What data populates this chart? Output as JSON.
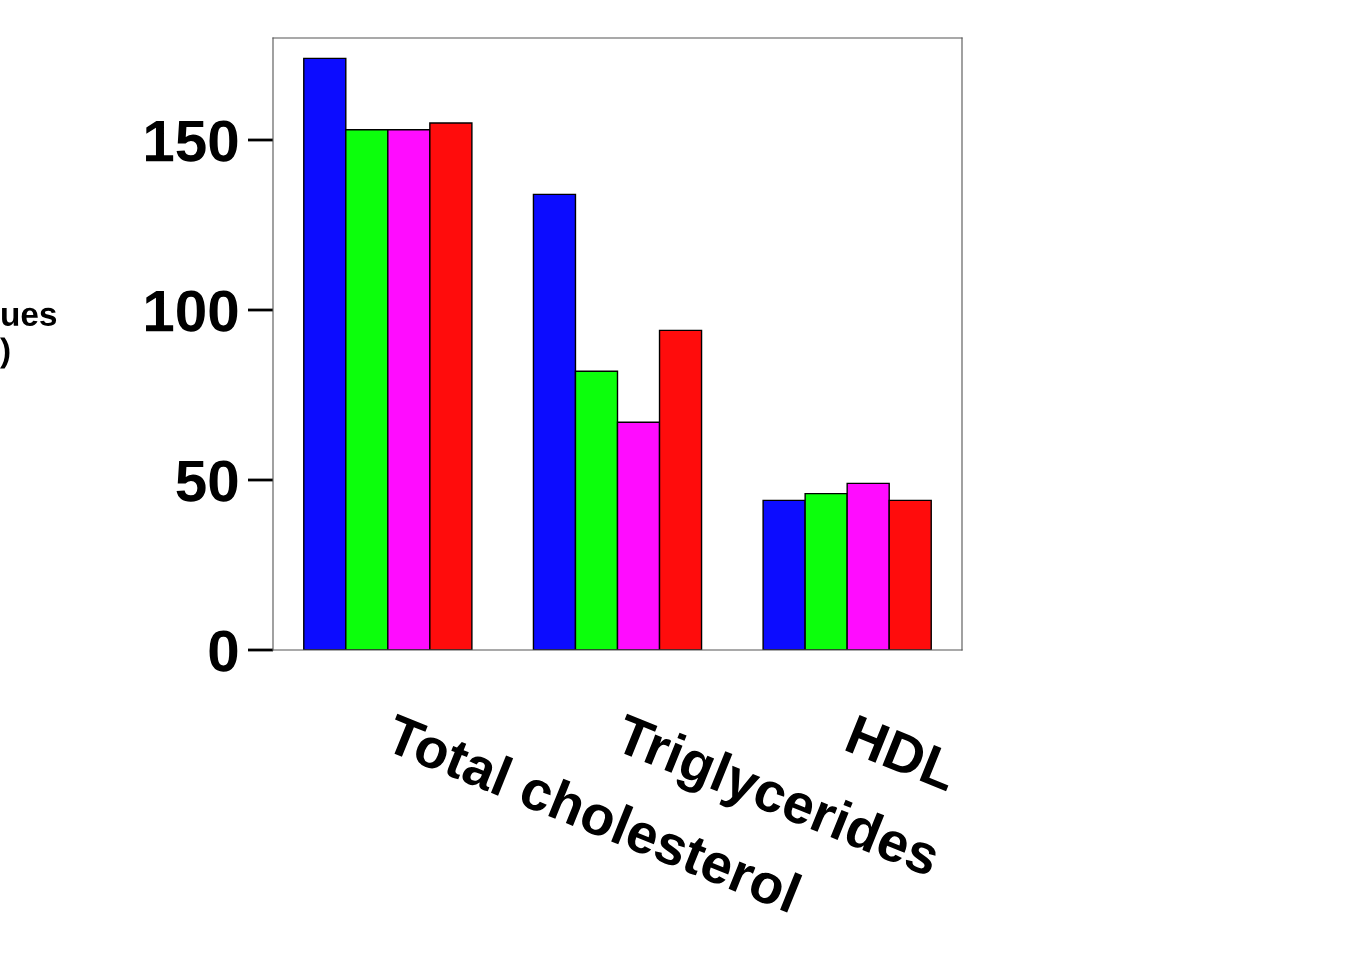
{
  "chart_data": {
    "type": "bar",
    "ylabel": "ues\n)",
    "categories": [
      "Total cholesterol",
      "Triglycerides",
      "HDL"
    ],
    "series": [
      {
        "color": "#0c0cff",
        "values": [
          174,
          134,
          44
        ]
      },
      {
        "color": "#0cff0c",
        "values": [
          153,
          82,
          46
        ]
      },
      {
        "color": "#ff0cff",
        "values": [
          153,
          67,
          49
        ]
      },
      {
        "color": "#ff0c0c",
        "values": [
          155,
          94,
          44
        ]
      }
    ],
    "ylim": [
      0,
      180
    ],
    "yticks": [
      0,
      50,
      100,
      150
    ],
    "grid": false
  }
}
